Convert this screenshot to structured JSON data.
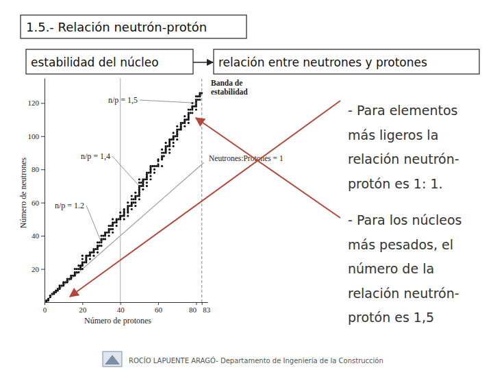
{
  "slide": {
    "title": "1.5.- Relación neutrón-protón",
    "box_left": "estabilidad del núcleo",
    "box_right": "relación entre neutrones y protones",
    "bullets": [
      [
        "- Para elementos",
        "más ligeros la",
        "relación neutrón-",
        "protón es 1: 1."
      ],
      [
        "- Para los núcleos",
        "más pesados, el",
        "número de la",
        "relación neutrón-",
        "protón es 1,5"
      ]
    ],
    "footer": "ROCÍO LAPUENTE ARAGÓ- Departamento de Ingeniería de la Construcción"
  },
  "chart_data": {
    "type": "scatter",
    "x_label": "Número de protones",
    "y_label": "Número de neutrones",
    "xlim": [
      0,
      86
    ],
    "ylim": [
      0,
      135
    ],
    "xticks": [
      0,
      20,
      40,
      60,
      80,
      83
    ],
    "yticks": [
      20,
      40,
      60,
      80,
      100,
      120
    ],
    "grid": false,
    "series": [
      {
        "name": "Banda de estabilidad",
        "type": "scatter",
        "marker": "circle",
        "color": "#111111",
        "x": [
          1,
          1,
          2,
          2,
          3,
          3,
          4,
          5,
          5,
          6,
          6,
          7,
          7,
          8,
          8,
          8,
          9,
          10,
          10,
          10,
          11,
          12,
          12,
          12,
          13,
          14,
          14,
          14,
          15,
          16,
          16,
          16,
          16,
          17,
          17,
          18,
          18,
          18,
          19,
          19,
          19,
          20,
          20,
          20,
          20,
          20,
          20,
          21,
          22,
          22,
          22,
          22,
          22,
          23,
          24,
          24,
          24,
          24,
          25,
          26,
          26,
          26,
          26,
          27,
          28,
          28,
          28,
          28,
          28,
          29,
          29,
          30,
          30,
          30,
          30,
          30,
          31,
          31,
          32,
          32,
          32,
          32,
          33,
          34,
          34,
          34,
          34,
          34,
          35,
          35,
          36,
          36,
          36,
          36,
          36,
          36,
          37,
          38,
          38,
          38,
          38,
          39,
          40,
          40,
          40,
          40,
          41,
          42,
          42,
          42,
          42,
          42,
          42,
          44,
          44,
          44,
          44,
          44,
          44,
          44,
          45,
          46,
          46,
          46,
          46,
          46,
          46,
          47,
          47,
          48,
          48,
          48,
          48,
          48,
          48,
          49,
          50,
          50,
          50,
          50,
          50,
          50,
          50,
          50,
          50,
          50,
          51,
          51,
          52,
          52,
          52,
          52,
          52,
          52,
          53,
          54,
          54,
          54,
          54,
          54,
          54,
          54,
          55,
          56,
          56,
          56,
          56,
          56,
          56,
          56,
          57,
          58,
          58,
          58,
          59,
          60,
          60,
          60,
          60,
          62,
          62,
          62,
          62,
          62,
          62,
          63,
          63,
          64,
          64,
          64,
          64,
          64,
          64,
          65,
          66,
          66,
          66,
          66,
          66,
          66,
          66,
          67,
          68,
          68,
          68,
          68,
          68,
          68,
          69,
          70,
          70,
          70,
          70,
          70,
          70,
          70,
          71,
          72,
          72,
          72,
          72,
          72,
          73,
          74,
          74,
          74,
          74,
          74,
          75,
          76,
          76,
          76,
          76,
          76,
          76,
          76,
          77,
          77,
          78,
          78,
          78,
          78,
          78,
          79,
          80,
          80,
          80,
          80,
          80,
          80,
          80,
          81,
          81,
          82,
          82,
          82,
          82,
          83
        ],
        "values": [
          0,
          1,
          1,
          2,
          3,
          4,
          5,
          5,
          6,
          6,
          7,
          7,
          8,
          8,
          9,
          10,
          10,
          10,
          11,
          12,
          12,
          12,
          13,
          14,
          14,
          14,
          15,
          16,
          16,
          16,
          17,
          18,
          20,
          18,
          20,
          18,
          20,
          22,
          20,
          21,
          22,
          20,
          22,
          23,
          24,
          26,
          28,
          24,
          24,
          25,
          26,
          27,
          28,
          28,
          26,
          28,
          29,
          30,
          30,
          28,
          30,
          31,
          32,
          32,
          30,
          32,
          33,
          34,
          36,
          34,
          36,
          34,
          36,
          37,
          38,
          40,
          38,
          40,
          38,
          40,
          41,
          42,
          42,
          40,
          42,
          43,
          44,
          46,
          44,
          46,
          42,
          44,
          46,
          47,
          48,
          50,
          48,
          46,
          48,
          49,
          50,
          50,
          50,
          51,
          52,
          54,
          52,
          50,
          52,
          53,
          54,
          55,
          56,
          52,
          54,
          55,
          56,
          57,
          58,
          60,
          58,
          56,
          58,
          59,
          60,
          62,
          64,
          60,
          62,
          58,
          60,
          62,
          63,
          64,
          66,
          64,
          62,
          64,
          65,
          66,
          67,
          68,
          69,
          70,
          72,
          74,
          70,
          72,
          68,
          70,
          71,
          72,
          73,
          74,
          74,
          70,
          72,
          74,
          75,
          76,
          77,
          78,
          78,
          74,
          76,
          78,
          79,
          80,
          81,
          82,
          82,
          78,
          80,
          82,
          82,
          82,
          83,
          85,
          86,
          82,
          86,
          87,
          88,
          90,
          92,
          88,
          90,
          90,
          91,
          92,
          93,
          94,
          96,
          94,
          90,
          92,
          94,
          95,
          96,
          97,
          98,
          98,
          94,
          96,
          98,
          99,
          100,
          102,
          100,
          98,
          100,
          101,
          102,
          103,
          104,
          106,
          104,
          104,
          105,
          106,
          107,
          108,
          108,
          106,
          108,
          109,
          110,
          112,
          110,
          108,
          110,
          111,
          112,
          113,
          114,
          116,
          114,
          116,
          114,
          116,
          117,
          118,
          120,
          118,
          116,
          118,
          119,
          120,
          121,
          122,
          124,
          122,
          124,
          122,
          124,
          125,
          126,
          126
        ]
      },
      {
        "name": "Neutrones:Protones = 1",
        "type": "line",
        "line_style": "solid",
        "color": "#9a9a9a",
        "x": [
          0,
          84
        ],
        "values": [
          0,
          84
        ]
      },
      {
        "type": "line",
        "line_style": "solid",
        "color": "#b8b8b8",
        "x": [
          40,
          40
        ],
        "values": [
          0,
          135
        ]
      },
      {
        "type": "line",
        "line_style": "dashed",
        "color": "#9a9a9a",
        "x": [
          83,
          83
        ],
        "values": [
          0,
          135
        ]
      }
    ],
    "annotations": [
      {
        "text": "n/p = 1,5",
        "x": 80,
        "y": 120
      },
      {
        "text": "n/p = 1,4",
        "x": 50,
        "y": 70
      },
      {
        "text": "n/p = 1.2",
        "x": 30,
        "y": 36
      }
    ]
  }
}
